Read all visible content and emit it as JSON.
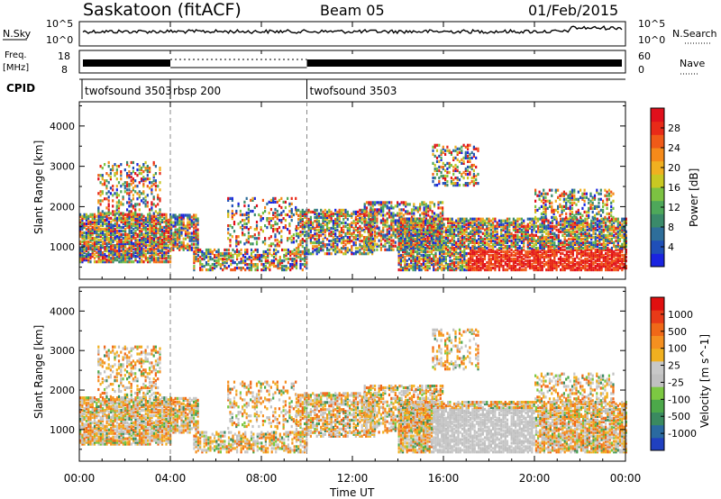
{
  "header": {
    "station": "Saskatoon (fitACF)",
    "beam": "Beam 05",
    "date": "01/Feb/2015"
  },
  "top_panels": {
    "noise_left_label": "N.Sky",
    "noise_right_label": "N.Search",
    "noise_left_ticks": [
      "10^5",
      "10^0"
    ],
    "noise_right_ticks": [
      "10^5",
      "10^0"
    ],
    "freq_label_1": "Freq.",
    "freq_label_2": "[MHz]",
    "freq_ticks": [
      "18",
      "8"
    ],
    "nave_label": "Nave",
    "nave_ticks": [
      "60",
      "0"
    ],
    "cpid_label": "CPID",
    "cpid_segments": [
      {
        "name": "twofsound 3503",
        "start_hour": 0,
        "end_hour": 4
      },
      {
        "name": "rbsp 200",
        "start_hour": 4,
        "end_hour": 10
      },
      {
        "name": "twofsound 3503",
        "start_hour": 10,
        "end_hour": 24
      }
    ]
  },
  "chart_data": [
    {
      "type": "heatmap",
      "name": "Power",
      "ylabel": "Slant Range [km]",
      "yticks": [
        1000,
        2000,
        3000,
        4000
      ],
      "ylim": [
        200,
        4600
      ],
      "xlim_hours": [
        0,
        24
      ],
      "colorbar_label": "Power [dB]",
      "colorbar_ticks": [
        "28",
        "24",
        "20",
        "16",
        "12",
        "8",
        "4"
      ],
      "colorbar_colors": [
        "#1a24e0",
        "#1f4fb8",
        "#2e6e9a",
        "#3a8a6a",
        "#4ea85a",
        "#7cc242",
        "#c8c822",
        "#f0b020",
        "#f58a1a",
        "#f05a18",
        "#e82a18",
        "#e0101c"
      ],
      "cmap_range": [
        0,
        30
      ]
    },
    {
      "type": "heatmap",
      "name": "Velocity",
      "ylabel": "Slant Range [km]",
      "yticks": [
        1000,
        2000,
        3000,
        4000
      ],
      "ylim": [
        200,
        4600
      ],
      "xlim_hours": [
        0,
        24
      ],
      "colorbar_label": "Velocity [m s^-1]",
      "colorbar_ticks": [
        "1000",
        "500",
        "100",
        "25",
        "-25",
        "-100",
        "-500",
        "-1000"
      ],
      "colorbar_colors": [
        "#2040c0",
        "#2a6aa0",
        "#3a8a60",
        "#4ca84a",
        "#7cc842",
        "#c0c0c0",
        "#c8c8c8",
        "#f0b020",
        "#f59020",
        "#f06818",
        "#e83a18",
        "#e01010"
      ],
      "cmap_range": [
        -1000,
        1000
      ]
    }
  ],
  "xaxis": {
    "ticks": [
      "00:00",
      "04:00",
      "08:00",
      "12:00",
      "16:00",
      "20:00",
      "00:00"
    ],
    "label": "Time UT",
    "dashed_lines_hours": [
      4,
      10
    ]
  }
}
